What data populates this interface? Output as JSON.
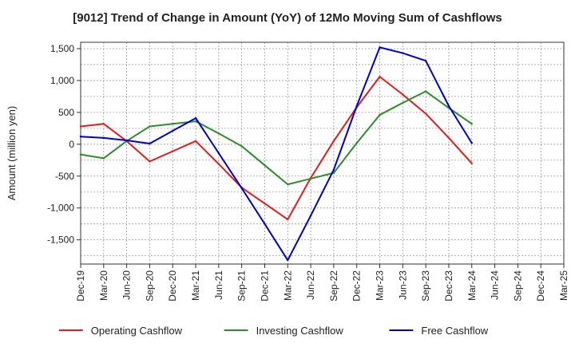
{
  "chart_data": {
    "type": "line",
    "title": "[9012]  Trend of Change in Amount (YoY) of 12Mo Moving Sum of Cashflows",
    "xlabel": "",
    "ylabel": "Amount (million yen)",
    "ylim": [
      -1880,
      1600
    ],
    "yticks": [
      1500,
      1000,
      500,
      0,
      -500,
      -1000,
      -1500
    ],
    "ytick_labels": [
      "1,500",
      "1,000",
      "500",
      "0",
      "-500",
      "-1,000",
      "-1,500"
    ],
    "categories": [
      "Dec-19",
      "Mar-20",
      "Jun-20",
      "Sep-20",
      "Dec-20",
      "Mar-21",
      "Jun-21",
      "Sep-21",
      "Dec-21",
      "Mar-22",
      "Jun-22",
      "Sep-22",
      "Dec-22",
      "Mar-23",
      "Jun-23",
      "Sep-23",
      "Dec-23",
      "Mar-24",
      "Jun-24",
      "Sep-24",
      "Dec-24",
      "Mar-25"
    ],
    "grid": true,
    "legend_position": "bottom",
    "series": [
      {
        "name": "Operating Cashflow",
        "color": "#e41a1c",
        "values": [
          280,
          320,
          50,
          -270,
          -110,
          50,
          -310,
          -680,
          -930,
          -1180,
          -530,
          50,
          580,
          1060,
          780,
          480,
          100,
          -300,
          null,
          null,
          null,
          null
        ]
      },
      {
        "name": "Investing Cashflow",
        "color": "#2e8b2e",
        "values": [
          -160,
          -220,
          50,
          280,
          320,
          360,
          170,
          -30,
          -330,
          -630,
          -540,
          -450,
          20,
          460,
          650,
          830,
          570,
          320,
          null,
          null,
          null,
          null
        ]
      },
      {
        "name": "Free Cashflow",
        "color": "#0000cc",
        "values": [
          120,
          100,
          60,
          10,
          210,
          410,
          -140,
          -690,
          -1250,
          -1820,
          -1120,
          -400,
          600,
          1520,
          1430,
          1310,
          600,
          20,
          null,
          null,
          null,
          null
        ]
      }
    ]
  }
}
